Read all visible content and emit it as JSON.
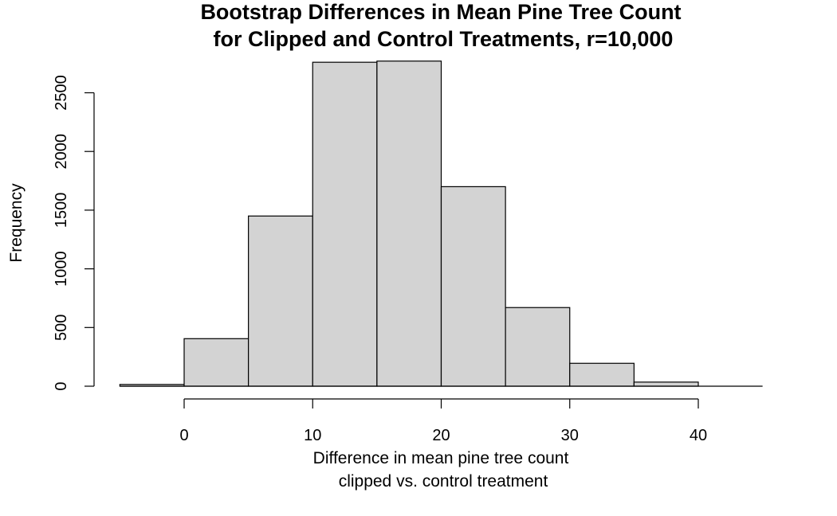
{
  "chart_data": {
    "type": "bar",
    "title_line1": "Bootstrap Differences in Mean Pine Tree Count",
    "title_line2": "for Clipped and Control Treatments, r=10,000",
    "xlabel_line1": "Difference in mean pine tree count",
    "xlabel_line2": "clipped vs. control treatment",
    "ylabel": "Frequency",
    "bin_edges": [
      -5,
      0,
      5,
      10,
      15,
      20,
      25,
      30,
      35,
      40,
      45
    ],
    "values": [
      15,
      405,
      1450,
      2760,
      2770,
      1700,
      670,
      195,
      35,
      0
    ],
    "xticks": [
      0,
      10,
      20,
      30,
      40
    ],
    "yticks": [
      0,
      500,
      1000,
      1500,
      2000,
      2500
    ],
    "xlim": [
      0,
      40
    ],
    "ylim": [
      0,
      2500
    ],
    "grid": false,
    "colors": {
      "bar_fill": "#d3d3d3",
      "bar_stroke": "#000000"
    }
  }
}
